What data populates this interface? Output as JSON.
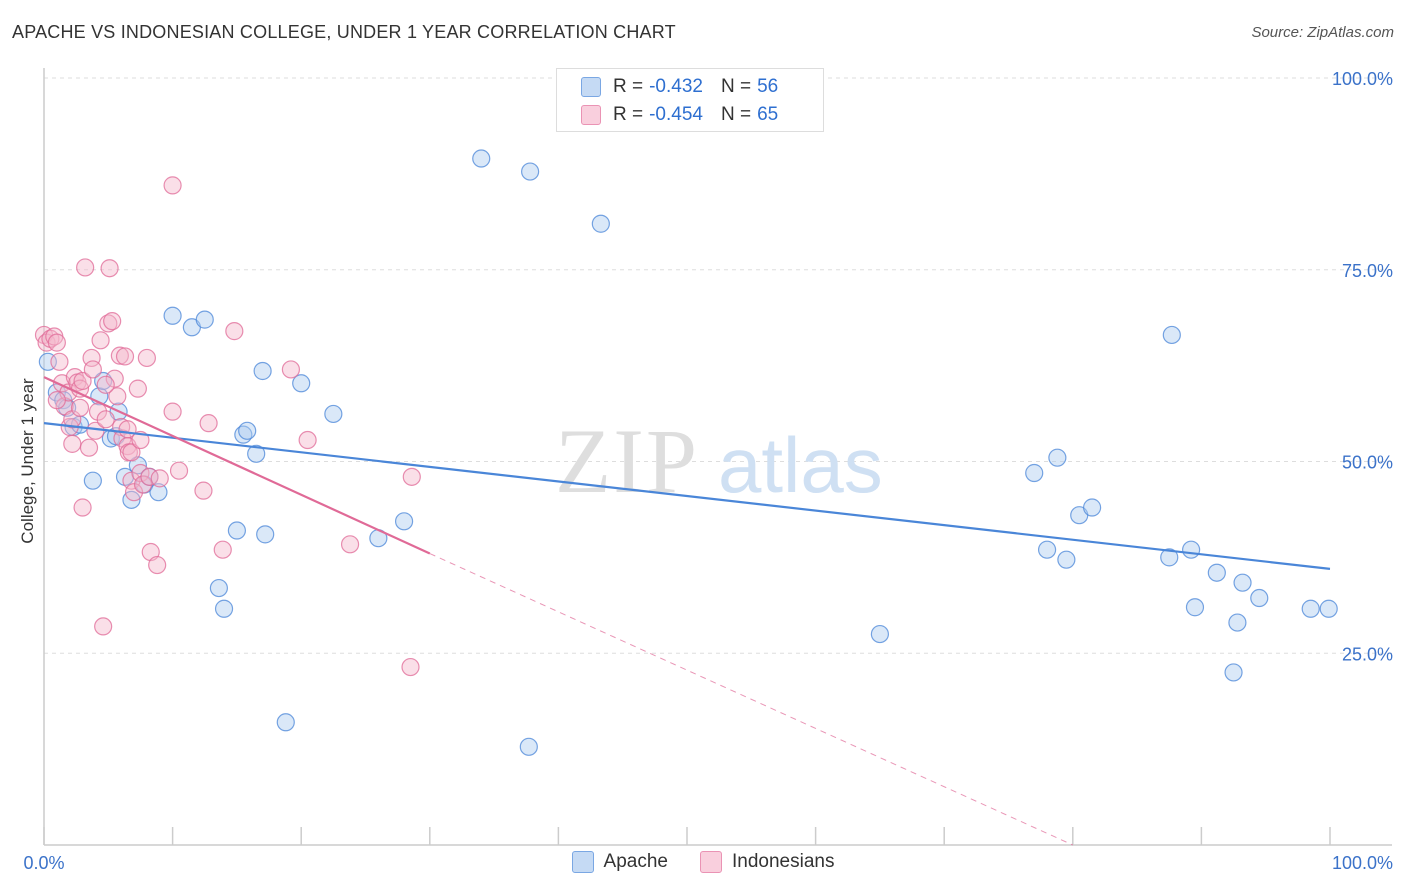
{
  "chart_data": {
    "type": "scatter",
    "title": "APACHE VS INDONESIAN COLLEGE, UNDER 1 YEAR CORRELATION CHART",
    "source": "Source: ZipAtlas.com",
    "watermark": {
      "part1": "ZIP",
      "part2": "atlas"
    },
    "ylabel": "College, Under 1 year",
    "xlabel": "",
    "xlim": [
      0,
      100
    ],
    "ylim": [
      0,
      100
    ],
    "x_tick_labels": {
      "left": "0.0%",
      "right": "100.0%"
    },
    "y_ticks": [
      {
        "value": 100,
        "label": "100.0%"
      },
      {
        "value": 75,
        "label": "75.0%"
      },
      {
        "value": 50,
        "label": "50.0%"
      },
      {
        "value": 25,
        "label": "25.0%"
      }
    ],
    "grid": true,
    "legend_position": "top-center",
    "series": [
      {
        "name": "Apache",
        "color": "#4a86d8",
        "fill": "#aecbf0",
        "r_label": "R =",
        "r_value": "-0.432",
        "n_label": "N =",
        "n_value": "56",
        "trend": {
          "x0": 0,
          "y0": 55.0,
          "x1": 100,
          "y1": 36.0
        },
        "points": [
          [
            0.3,
            63.0
          ],
          [
            1.0,
            59.0
          ],
          [
            1.5,
            58.0
          ],
          [
            1.8,
            57.0
          ],
          [
            2.3,
            54.5
          ],
          [
            2.8,
            54.8
          ],
          [
            3.8,
            47.5
          ],
          [
            4.3,
            58.5
          ],
          [
            4.6,
            60.5
          ],
          [
            5.2,
            53.0
          ],
          [
            5.6,
            53.3
          ],
          [
            5.8,
            56.5
          ],
          [
            6.3,
            48.0
          ],
          [
            6.8,
            45.0
          ],
          [
            7.3,
            49.5
          ],
          [
            7.8,
            47.0
          ],
          [
            8.2,
            48.0
          ],
          [
            8.9,
            46.0
          ],
          [
            10.0,
            69.0
          ],
          [
            11.5,
            67.5
          ],
          [
            12.5,
            68.5
          ],
          [
            13.6,
            33.5
          ],
          [
            14.0,
            30.8
          ],
          [
            15.0,
            41.0
          ],
          [
            15.5,
            53.5
          ],
          [
            15.8,
            54.0
          ],
          [
            16.5,
            51.0
          ],
          [
            17.0,
            61.8
          ],
          [
            17.2,
            40.5
          ],
          [
            18.8,
            16.0
          ],
          [
            20.0,
            60.2
          ],
          [
            22.5,
            56.2
          ],
          [
            26.0,
            40.0
          ],
          [
            28.0,
            42.2
          ],
          [
            34.0,
            89.5
          ],
          [
            37.7,
            12.8
          ],
          [
            37.8,
            87.8
          ],
          [
            43.3,
            81.0
          ],
          [
            65.0,
            27.5
          ],
          [
            77.0,
            48.5
          ],
          [
            78.0,
            38.5
          ],
          [
            78.8,
            50.5
          ],
          [
            79.5,
            37.2
          ],
          [
            80.5,
            43.0
          ],
          [
            81.5,
            44.0
          ],
          [
            87.5,
            37.5
          ],
          [
            87.7,
            66.5
          ],
          [
            89.2,
            38.5
          ],
          [
            89.5,
            31.0
          ],
          [
            91.2,
            35.5
          ],
          [
            92.5,
            22.5
          ],
          [
            92.8,
            29.0
          ],
          [
            93.2,
            34.2
          ],
          [
            94.5,
            32.2
          ],
          [
            98.5,
            30.8
          ],
          [
            99.9,
            30.8
          ]
        ]
      },
      {
        "name": "Indonesians",
        "color": "#e06a97",
        "fill": "#f5b9cd",
        "r_label": "R =",
        "r_value": "-0.454",
        "n_label": "N =",
        "n_value": "65",
        "trend": {
          "x0": 0,
          "y0": 61.0,
          "x1": 30,
          "y1": 38.0,
          "dash_to_x": 80,
          "dash_to_y": 0
        },
        "points": [
          [
            0.0,
            66.5
          ],
          [
            0.2,
            65.5
          ],
          [
            0.5,
            66.0
          ],
          [
            0.8,
            66.3
          ],
          [
            1.0,
            65.5
          ],
          [
            1.2,
            63.0
          ],
          [
            1.4,
            60.2
          ],
          [
            1.6,
            57.2
          ],
          [
            1.9,
            59.0
          ],
          [
            2.0,
            54.5
          ],
          [
            2.2,
            55.5
          ],
          [
            2.2,
            52.3
          ],
          [
            2.4,
            61.0
          ],
          [
            2.6,
            60.3
          ],
          [
            2.8,
            59.5
          ],
          [
            3.0,
            60.5
          ],
          [
            3.0,
            44.0
          ],
          [
            3.2,
            75.3
          ],
          [
            3.5,
            51.8
          ],
          [
            3.7,
            63.5
          ],
          [
            3.8,
            62.0
          ],
          [
            4.0,
            54.0
          ],
          [
            4.2,
            56.5
          ],
          [
            4.4,
            65.8
          ],
          [
            4.6,
            28.5
          ],
          [
            4.8,
            55.5
          ],
          [
            5.0,
            68.0
          ],
          [
            5.1,
            75.2
          ],
          [
            5.3,
            68.3
          ],
          [
            5.5,
            60.8
          ],
          [
            5.7,
            58.5
          ],
          [
            5.9,
            63.8
          ],
          [
            6.0,
            54.5
          ],
          [
            6.1,
            53.0
          ],
          [
            6.3,
            63.7
          ],
          [
            6.5,
            52.0
          ],
          [
            6.5,
            54.2
          ],
          [
            6.6,
            51.2
          ],
          [
            6.8,
            47.5
          ],
          [
            7.0,
            46.0
          ],
          [
            7.3,
            59.5
          ],
          [
            7.5,
            48.5
          ],
          [
            7.7,
            47.0
          ],
          [
            8.0,
            63.5
          ],
          [
            8.2,
            48.0
          ],
          [
            8.3,
            38.2
          ],
          [
            8.8,
            36.5
          ],
          [
            9.0,
            47.8
          ],
          [
            10.0,
            56.5
          ],
          [
            10.0,
            86.0
          ],
          [
            10.5,
            48.8
          ],
          [
            12.4,
            46.2
          ],
          [
            12.8,
            55.0
          ],
          [
            13.9,
            38.5
          ],
          [
            14.8,
            67.0
          ],
          [
            19.2,
            62.0
          ],
          [
            20.5,
            52.8
          ],
          [
            23.8,
            39.2
          ],
          [
            28.5,
            23.2
          ],
          [
            28.6,
            48.0
          ],
          [
            1.0,
            58.0
          ],
          [
            2.8,
            57.0
          ],
          [
            4.8,
            60.0
          ],
          [
            6.8,
            51.2
          ],
          [
            7.5,
            52.8
          ]
        ]
      }
    ]
  }
}
